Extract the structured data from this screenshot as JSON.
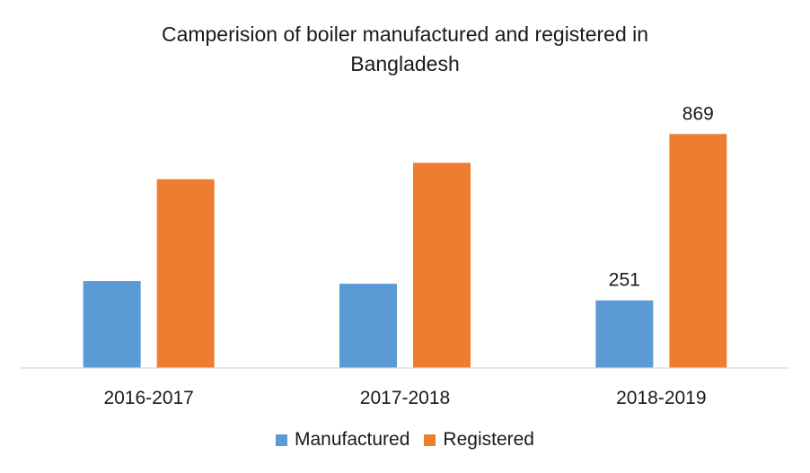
{
  "chart_data": {
    "type": "bar",
    "title_lines": [
      "Camperision of boiler manufactured and registered in",
      "Bangladesh"
    ],
    "categories": [
      "2016-2017",
      "2017-2018",
      "2018-2019"
    ],
    "series": [
      {
        "name": "Manufactured",
        "color": "#5B9BD5",
        "values": [
          323,
          313,
          251
        ]
      },
      {
        "name": "Registered",
        "color": "#ED7D31",
        "values": [
          701,
          762,
          869
        ]
      }
    ],
    "data_labels": [
      {
        "series": "Manufactured",
        "category": "2018-2019",
        "text": "251"
      },
      {
        "series": "Registered",
        "category": "2018-2019",
        "text": "869"
      }
    ],
    "ylim": [
      0,
      1000
    ],
    "grid": false,
    "legend_position": "bottom"
  }
}
